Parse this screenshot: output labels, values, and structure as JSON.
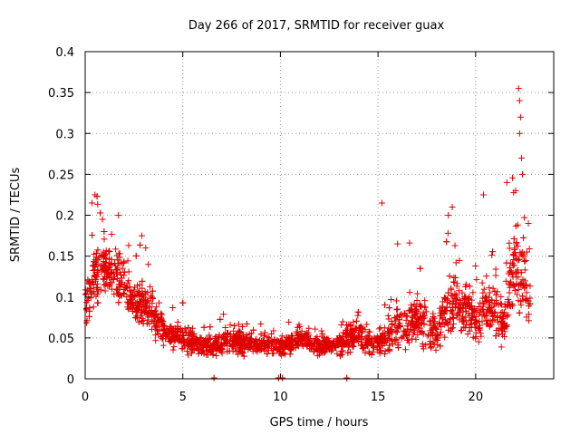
{
  "chart_data": {
    "type": "scatter",
    "title": "Day 266 of 2017, SRMTID for receiver guax",
    "xlabel": "GPS time / hours",
    "ylabel": "SRMTID / TECUs",
    "xlim": [
      0,
      24
    ],
    "ylim": [
      0,
      0.4
    ],
    "x_ticks": [
      0,
      5,
      10,
      15,
      20
    ],
    "x_tick_labels": [
      "0",
      "5",
      "10",
      "15",
      "20"
    ],
    "y_ticks": [
      0,
      0.05,
      0.1,
      0.15,
      0.2,
      0.25,
      0.3,
      0.35,
      0.4
    ],
    "y_tick_labels": [
      "0",
      "0.05",
      "0.1",
      "0.15",
      "0.2",
      "0.25",
      "0.3",
      "0.35",
      "0.4"
    ],
    "grid": true,
    "marker": "plus",
    "series_color": "#e00000",
    "envelope": {
      "hours": [
        0.0,
        0.5,
        1.0,
        1.5,
        2.0,
        2.5,
        3.0,
        3.5,
        4.0,
        4.5,
        5.0,
        5.5,
        6.0,
        6.5,
        7.0,
        7.5,
        8.0,
        8.5,
        9.0,
        9.5,
        10.0,
        10.5,
        11.0,
        11.5,
        12.0,
        12.5,
        13.0,
        13.5,
        14.0,
        14.5,
        15.0,
        15.5,
        16.0,
        16.5,
        17.0,
        17.5,
        18.0,
        18.5,
        19.0,
        19.5,
        20.0,
        20.5,
        21.0,
        21.5,
        22.0,
        22.5,
        22.8
      ],
      "center": [
        0.09,
        0.13,
        0.13,
        0.13,
        0.12,
        0.09,
        0.09,
        0.08,
        0.06,
        0.05,
        0.05,
        0.045,
        0.04,
        0.04,
        0.045,
        0.045,
        0.045,
        0.045,
        0.045,
        0.04,
        0.04,
        0.045,
        0.05,
        0.045,
        0.04,
        0.04,
        0.04,
        0.05,
        0.055,
        0.045,
        0.045,
        0.05,
        0.065,
        0.07,
        0.07,
        0.065,
        0.055,
        0.08,
        0.09,
        0.08,
        0.075,
        0.085,
        0.08,
        0.07,
        0.15,
        0.12,
        0.09
      ],
      "spread": [
        0.05,
        0.07,
        0.05,
        0.05,
        0.05,
        0.04,
        0.05,
        0.04,
        0.03,
        0.025,
        0.025,
        0.025,
        0.02,
        0.02,
        0.02,
        0.022,
        0.022,
        0.022,
        0.02,
        0.02,
        0.02,
        0.02,
        0.022,
        0.02,
        0.02,
        0.018,
        0.02,
        0.03,
        0.04,
        0.025,
        0.025,
        0.04,
        0.05,
        0.05,
        0.05,
        0.045,
        0.04,
        0.06,
        0.06,
        0.05,
        0.05,
        0.06,
        0.06,
        0.05,
        0.1,
        0.07,
        0.05
      ]
    },
    "n_points": 2600,
    "peaks": [
      {
        "x": 0.35,
        "y": 0.215
      },
      {
        "x": 0.5,
        "y": 0.225
      },
      {
        "x": 1.7,
        "y": 0.2
      },
      {
        "x": 2.9,
        "y": 0.175
      },
      {
        "x": 3.1,
        "y": 0.16
      },
      {
        "x": 15.2,
        "y": 0.215
      },
      {
        "x": 16.0,
        "y": 0.165
      },
      {
        "x": 18.6,
        "y": 0.2
      },
      {
        "x": 18.8,
        "y": 0.21
      },
      {
        "x": 20.4,
        "y": 0.225
      },
      {
        "x": 21.6,
        "y": 0.24
      },
      {
        "x": 22.2,
        "y": 0.355
      },
      {
        "x": 22.25,
        "y": 0.34
      },
      {
        "x": 22.3,
        "y": 0.32
      },
      {
        "x": 22.25,
        "y": 0.3
      },
      {
        "x": 22.35,
        "y": 0.27
      },
      {
        "x": 22.4,
        "y": 0.25
      },
      {
        "x": 22.05,
        "y": 0.23
      },
      {
        "x": 22.7,
        "y": 0.19
      }
    ],
    "zero_points": [
      {
        "x": 6.6,
        "y": 0
      },
      {
        "x": 9.9,
        "y": 0
      },
      {
        "x": 10.1,
        "y": 0
      },
      {
        "x": 13.4,
        "y": 0
      }
    ]
  }
}
